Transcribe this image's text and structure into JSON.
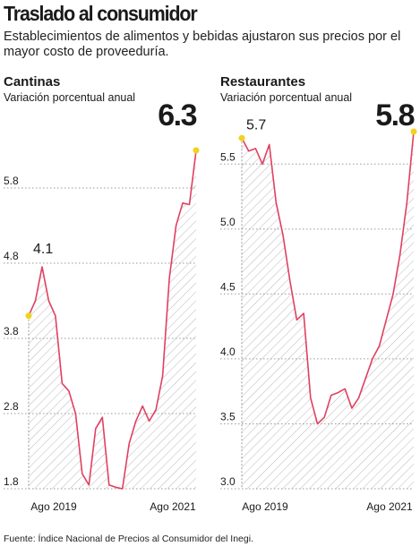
{
  "title": "Traslado al consumidor",
  "subtitle": "Establecimientos de alimentos y bebidas ajustaron sus precios por el mayor costo de proveeduría.",
  "source": "Fuente: Índice Nacional de Precios al Consumidor del Inegi.",
  "colors": {
    "line": "#e04060",
    "marker": "#f2d21a",
    "hatch": "#b8b8b8",
    "grid": "#9a9a9a",
    "text": "#1a1a1a"
  },
  "chart_data": [
    {
      "type": "line",
      "title": "Cantinas",
      "subtitle": "Variación porcentual anual",
      "x_ticks": [
        "Ago 2019",
        "Ago 2021"
      ],
      "y_ticks": [
        1.8,
        2.8,
        3.8,
        4.8,
        5.8
      ],
      "ylim": [
        1.8,
        6.55
      ],
      "start_label": "4.1",
      "end_label": "6.3",
      "series": [
        {
          "values": [
            4.1,
            4.3,
            4.75,
            4.3,
            4.1,
            3.2,
            3.1,
            2.8,
            2.0,
            1.85,
            2.6,
            2.75,
            1.85,
            1.82,
            1.8,
            2.4,
            2.7,
            2.9,
            2.7,
            2.85,
            3.3,
            4.6,
            5.3,
            5.6,
            5.58,
            6.3
          ]
        }
      ]
    },
    {
      "type": "line",
      "title": "Restaurantes",
      "subtitle": "Variación porcentual anual",
      "x_ticks": [
        "Ago 2019",
        "Ago 2021"
      ],
      "y_ticks": [
        3.0,
        3.5,
        4.0,
        4.5,
        5.0,
        5.5
      ],
      "ylim": [
        3.0,
        5.75
      ],
      "start_label": "5.7",
      "end_label": "5.8",
      "series": [
        {
          "values": [
            5.7,
            5.6,
            5.62,
            5.5,
            5.65,
            5.2,
            4.95,
            4.6,
            4.3,
            4.35,
            3.7,
            3.5,
            3.55,
            3.72,
            3.74,
            3.77,
            3.62,
            3.7,
            3.85,
            4.0,
            4.1,
            4.3,
            4.5,
            4.8,
            5.2,
            5.75
          ]
        }
      ]
    }
  ]
}
